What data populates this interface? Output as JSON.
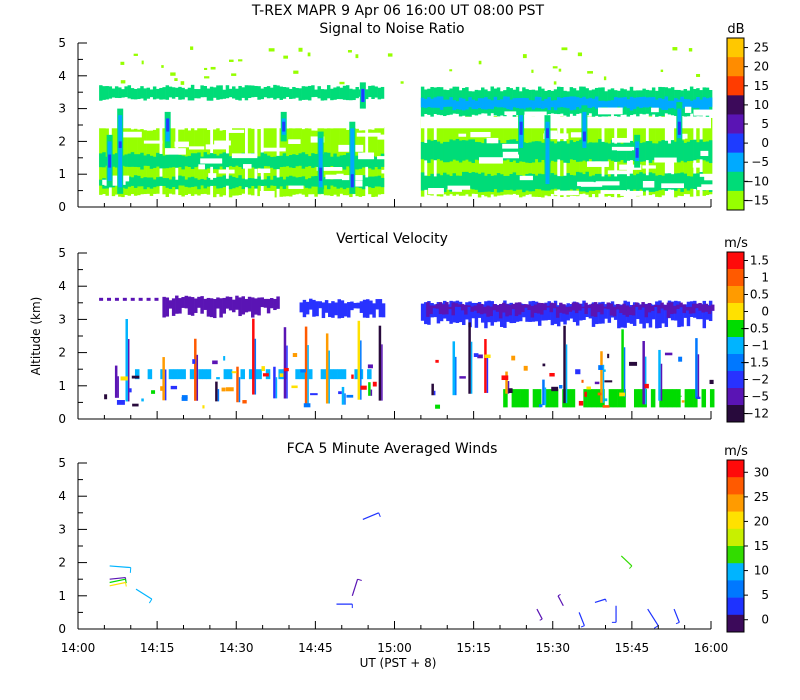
{
  "header": {
    "title": "T-REX   MAPR   9 Apr 06   16:00 UT   08:00   PST"
  },
  "x_axis": {
    "label": "UT  (PST + 8)",
    "range_min": [
      0,
      120
    ],
    "ticks": [
      {
        "min": 0,
        "label": "14:00"
      },
      {
        "min": 15,
        "label": "14:15"
      },
      {
        "min": 30,
        "label": "14:30"
      },
      {
        "min": 45,
        "label": "14:45"
      },
      {
        "min": 60,
        "label": "15:00"
      },
      {
        "min": 75,
        "label": "15:15"
      },
      {
        "min": 90,
        "label": "15:30"
      },
      {
        "min": 105,
        "label": "15:45"
      },
      {
        "min": 120,
        "label": "16:00"
      }
    ]
  },
  "chart_data": [
    {
      "type": "heatmap",
      "title": "Signal to Noise Ratio",
      "unit": "dB",
      "ylim": [
        0,
        5
      ],
      "yticks": [
        "0",
        "1",
        "2",
        "3",
        "4",
        "5"
      ],
      "colorbar": {
        "labels": [
          "25",
          "20",
          "15",
          "10",
          "5",
          "0",
          "−5",
          "−10",
          "−15"
        ],
        "colors": [
          "#ffc800",
          "#ff8c00",
          "#ff3c00",
          "#3c0a5a",
          "#5a14b4",
          "#1e3cff",
          "#00aaff",
          "#00dc78",
          "#96ff00"
        ]
      },
      "data_segments_min": [
        [
          4,
          58
        ],
        [
          65,
          120
        ]
      ],
      "bands": [
        {
          "seg": 0,
          "alt": [
            3.3,
            3.65
          ],
          "level": 7
        },
        {
          "seg": 0,
          "alt": [
            0.35,
            2.4
          ],
          "level": 8
        },
        {
          "seg": 0,
          "alt": [
            1.2,
            1.6
          ],
          "level": 7
        },
        {
          "seg": 0,
          "alt": [
            0.6,
            0.9
          ],
          "level": 7
        },
        {
          "seg": 1,
          "alt": [
            2.8,
            3.6
          ],
          "level": 7
        },
        {
          "seg": 1,
          "alt": [
            3.0,
            3.3
          ],
          "level": 6
        },
        {
          "seg": 1,
          "alt": [
            0.35,
            2.7
          ],
          "level": 8
        },
        {
          "seg": 1,
          "alt": [
            0.5,
            1.0
          ],
          "level": 7
        },
        {
          "seg": 1,
          "alt": [
            1.4,
            2.0
          ],
          "level": 7
        }
      ],
      "plumes": [
        {
          "t": 6,
          "alt": [
            0.6,
            2.2
          ],
          "core": [
            1.2,
            1.6
          ]
        },
        {
          "t": 8,
          "alt": [
            0.4,
            3.0
          ],
          "core": [
            1.8,
            2.0
          ]
        },
        {
          "t": 17,
          "alt": [
            1.8,
            2.9
          ],
          "core": [
            2.3,
            2.7
          ]
        },
        {
          "t": 39,
          "alt": [
            2.0,
            2.9
          ],
          "core": [
            2.3,
            2.6
          ]
        },
        {
          "t": 46,
          "alt": [
            0.4,
            2.3
          ],
          "core": [
            0.8,
            1.2
          ]
        },
        {
          "t": 52,
          "alt": [
            0.4,
            2.6
          ],
          "core": [
            0.6,
            1.0
          ]
        },
        {
          "t": 54,
          "alt": [
            3.0,
            3.8
          ],
          "core": [
            3.2,
            3.6
          ]
        },
        {
          "t": 84,
          "alt": [
            1.6,
            3.0
          ],
          "core": [
            2.2,
            2.6
          ]
        },
        {
          "t": 89,
          "alt": [
            0.5,
            2.8
          ],
          "core": [
            2.1,
            2.4
          ]
        },
        {
          "t": 96,
          "alt": [
            1.6,
            3.1
          ],
          "core": [
            2.0,
            2.3
          ]
        },
        {
          "t": 106,
          "alt": [
            1.2,
            2.2
          ],
          "core": [
            1.5,
            1.8
          ]
        },
        {
          "t": 114,
          "alt": [
            1.9,
            3.2
          ],
          "core": [
            2.2,
            2.6
          ]
        }
      ],
      "speckle_alt": [
        3.8,
        4.9
      ]
    },
    {
      "type": "heatmap",
      "title": "Vertical Velocity",
      "unit": "m/s",
      "ylabel": "Altitude (km)",
      "ylim": [
        0,
        5
      ],
      "yticks": [
        "0",
        "1",
        "2",
        "3",
        "4",
        "5"
      ],
      "colorbar": {
        "labels": [
          "1.5",
          "1",
          "0.5",
          "0",
          "−0.5",
          "−1",
          "−1.5",
          "−2",
          "−5",
          "−12"
        ],
        "colors": [
          "#ff0a0a",
          "#ff5a00",
          "#ff9b00",
          "#ffe100",
          "#00dc00",
          "#00b4ff",
          "#0078ff",
          "#2832ff",
          "#5a14b4",
          "#280a3c"
        ]
      },
      "data_segments_min": [
        [
          4,
          58
        ],
        [
          65,
          120
        ]
      ],
      "top_layer": [
        {
          "seg": 0,
          "from": 16,
          "to": 38,
          "alt": [
            3.1,
            3.65
          ],
          "color": "#5a14b4"
        },
        {
          "seg": 0,
          "from": 42,
          "to": 58,
          "alt": [
            3.1,
            3.55
          ],
          "color": "#2832ff"
        },
        {
          "seg": 1,
          "from": 65,
          "to": 120,
          "alt": [
            2.8,
            3.5
          ],
          "color": "#2832ff"
        },
        {
          "seg": 1,
          "from": 66,
          "to": 120,
          "alt": [
            3.1,
            3.45
          ],
          "color": "#5a14b4"
        }
      ],
      "bottom_layer": [
        {
          "seg": 1,
          "from": 79,
          "to": 120,
          "alt": [
            0.35,
            0.9
          ],
          "color": "#00dc00"
        },
        {
          "seg": 0,
          "from": 10,
          "to": 57,
          "alt": [
            1.2,
            1.5
          ],
          "color": "#00b4ff"
        }
      ],
      "streaks_min": [
        4,
        7,
        9,
        12,
        16,
        22,
        26,
        30,
        33,
        37,
        39,
        43,
        47,
        50,
        53,
        55,
        57,
        67,
        71,
        74,
        77,
        81,
        84,
        88,
        92,
        96,
        99,
        103,
        107,
        110,
        114,
        117
      ]
    },
    {
      "type": "scatter",
      "title": "FCA 5 Minute Averaged Winds",
      "unit": "m/s",
      "ylim": [
        0,
        5
      ],
      "yticks": [
        "0",
        "1",
        "2",
        "3",
        "4",
        "5"
      ],
      "colorbar": {
        "labels": [
          "30",
          "25",
          "20",
          "15",
          "10",
          "5",
          "0"
        ],
        "colors": [
          "#ff0a0a",
          "#ff5a00",
          "#ff9b00",
          "#ffe100",
          "#c8f000",
          "#32dc00",
          "#00b4ff",
          "#0078ff",
          "#1e32ff",
          "#3c0a5a"
        ]
      },
      "barbs": [
        {
          "t": 6,
          "alt": 1.9,
          "dx": 4,
          "dy": -0.05,
          "color": "#00b4ff"
        },
        {
          "t": 6,
          "alt": 1.5,
          "dx": 3,
          "dy": 0.05,
          "color": "#5a14b4"
        },
        {
          "t": 6,
          "alt": 1.4,
          "dx": 3,
          "dy": 0.1,
          "color": "#00dc00"
        },
        {
          "t": 6,
          "alt": 1.3,
          "dx": 3,
          "dy": 0.1,
          "color": "#ffe100"
        },
        {
          "t": 11,
          "alt": 1.2,
          "dx": 3,
          "dy": -0.3,
          "color": "#00b4ff"
        },
        {
          "t": 49,
          "alt": 0.75,
          "dx": 3,
          "dy": 0.0,
          "color": "#1e32ff"
        },
        {
          "t": 52,
          "alt": 1.0,
          "dx": 1,
          "dy": 0.5,
          "color": "#5a14b4"
        },
        {
          "t": 54,
          "alt": 3.3,
          "dx": 3,
          "dy": 0.2,
          "color": "#1e32ff"
        },
        {
          "t": 87,
          "alt": 0.6,
          "dx": 1,
          "dy": -0.3,
          "color": "#5a14b4"
        },
        {
          "t": 92,
          "alt": 0.7,
          "dx": -1,
          "dy": 0.3,
          "color": "#5a14b4"
        },
        {
          "t": 95,
          "alt": 0.5,
          "dx": 1,
          "dy": -0.4,
          "color": "#1e32ff"
        },
        {
          "t": 98,
          "alt": 0.8,
          "dx": 2,
          "dy": 0.1,
          "color": "#1e32ff"
        },
        {
          "t": 102,
          "alt": 0.7,
          "dx": 0,
          "dy": -0.5,
          "color": "#1e32ff"
        },
        {
          "t": 103,
          "alt": 2.2,
          "dx": 2,
          "dy": -0.3,
          "color": "#32dc00"
        },
        {
          "t": 108,
          "alt": 0.6,
          "dx": 2,
          "dy": -0.5,
          "color": "#1e32ff"
        },
        {
          "t": 113,
          "alt": 0.6,
          "dx": 1,
          "dy": -0.4,
          "color": "#1e32ff"
        }
      ]
    }
  ]
}
